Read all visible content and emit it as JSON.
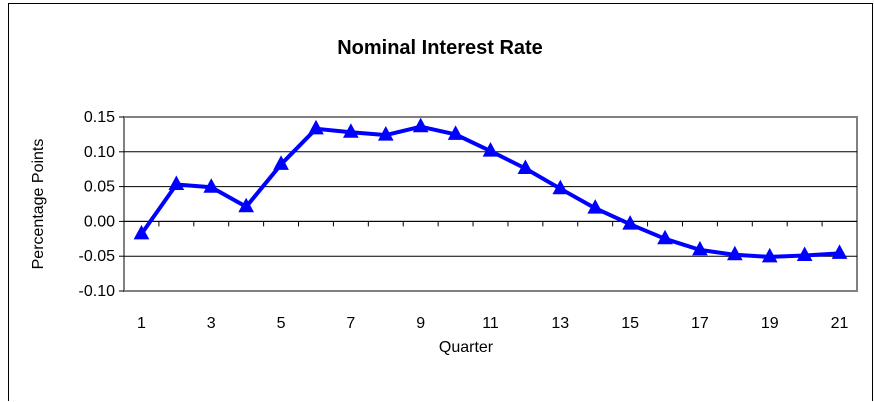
{
  "chart_data": {
    "type": "line",
    "title": "Nominal Interest Rate",
    "xlabel": "Quarter",
    "ylabel": "Percentage Points",
    "ylim": [
      -0.1,
      0.15
    ],
    "y_ticks": [
      "-0.10",
      "-0.05",
      "0.00",
      "0.05",
      "0.10",
      "0.15"
    ],
    "y_tick_values": [
      -0.1,
      -0.05,
      0.0,
      0.05,
      0.1,
      0.15
    ],
    "x_tick_labels": [
      "1",
      "3",
      "5",
      "7",
      "9",
      "11",
      "13",
      "15",
      "17",
      "19",
      "21"
    ],
    "x_tick_values": [
      1,
      3,
      5,
      7,
      9,
      11,
      13,
      15,
      17,
      19,
      21
    ],
    "grid": "horizontal",
    "legend": "none",
    "series": [
      {
        "color": "#0000ff",
        "marker": "triangle",
        "x": [
          1,
          2,
          3,
          4,
          5,
          6,
          7,
          8,
          9,
          10,
          11,
          12,
          13,
          14,
          15,
          16,
          17,
          18,
          19,
          20,
          21
        ],
        "values": [
          -0.018,
          0.053,
          0.049,
          0.021,
          0.082,
          0.133,
          0.128,
          0.124,
          0.136,
          0.125,
          0.101,
          0.076,
          0.047,
          0.019,
          -0.004,
          -0.025,
          -0.041,
          -0.048,
          -0.051,
          -0.049,
          -0.046
        ]
      }
    ]
  }
}
